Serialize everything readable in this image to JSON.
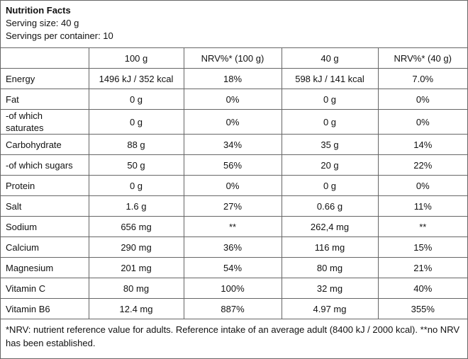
{
  "header": {
    "title": "Nutrition Facts",
    "serving_size": "Serving size: 40 g",
    "servings": "Servings per container: 10"
  },
  "table": {
    "columns": [
      "100 g",
      "NRV%* (100 g)",
      "40 g",
      "NRV%* (40 g)"
    ],
    "rows": [
      [
        "Energy",
        "1496 kJ / 352 kcal",
        "18%",
        "598 kJ / 141 kcal",
        "7.0%"
      ],
      [
        "Fat",
        "0 g",
        "0%",
        "0 g",
        "0%"
      ],
      [
        "-of which saturates",
        "0 g",
        "0%",
        "0 g",
        "0%"
      ],
      [
        "Carbohydrate",
        "88 g",
        "34%",
        "35 g",
        "14%"
      ],
      [
        "-of which sugars",
        "50 g",
        "56%",
        "20 g",
        "22%"
      ],
      [
        "Protein",
        "0 g",
        "0%",
        "0 g",
        "0%"
      ],
      [
        "Salt",
        "1.6 g",
        "27%",
        "0.66 g",
        "11%"
      ],
      [
        "Sodium",
        "656 mg",
        "**",
        "262,4 mg",
        "**"
      ],
      [
        "Calcium",
        "290 mg",
        "36%",
        "116 mg",
        "15%"
      ],
      [
        "Magnesium",
        "201 mg",
        "54%",
        "80 mg",
        "21%"
      ],
      [
        "Vitamin C",
        "80 mg",
        "100%",
        "32 mg",
        "40%"
      ],
      [
        "Vitamin B6",
        "12.4 mg",
        "887%",
        "4.97 mg",
        "355%"
      ]
    ]
  },
  "footnote": "*NRV: nutrient reference value for adults. Reference intake of an average adult (8400 kJ / 2000 kcal). **no NRV has been established."
}
